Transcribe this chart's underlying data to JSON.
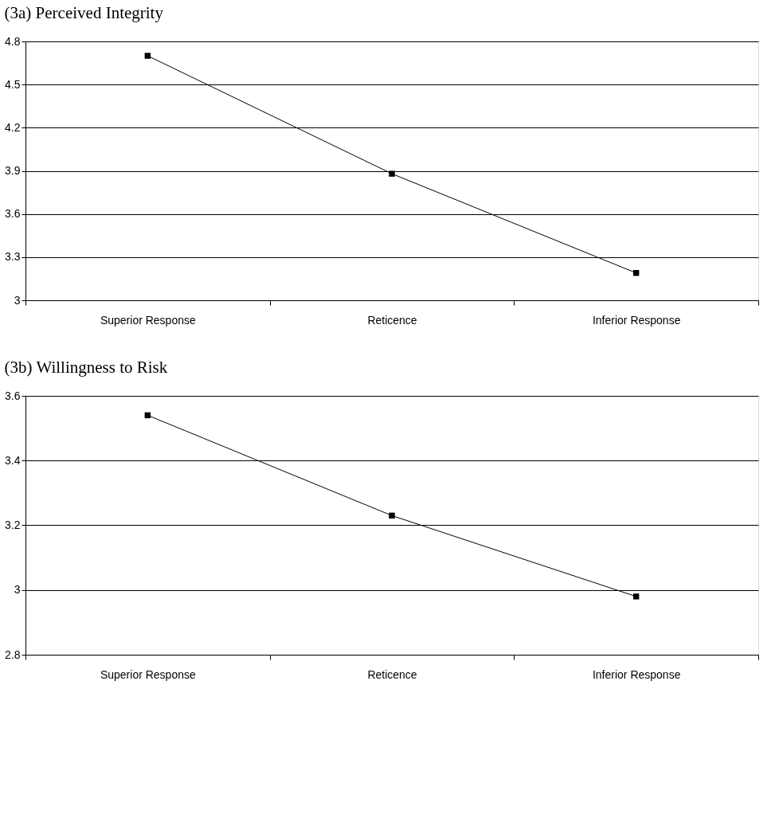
{
  "chart_data": [
    {
      "type": "line",
      "title": "(3a) Perceived Integrity",
      "categories": [
        "Superior Response",
        "Reticence",
        "Inferior Response"
      ],
      "values": [
        4.7,
        3.88,
        3.19
      ],
      "color": "#000000",
      "ylim": [
        3,
        4.8
      ],
      "yticks": [
        3,
        3.3,
        3.6,
        3.9,
        4.2,
        4.5,
        4.8
      ],
      "grid": "y",
      "marker": "square",
      "line_style": "solid"
    },
    {
      "type": "line",
      "title": "(3b) Willingness to Risk",
      "categories": [
        "Superior Response",
        "Reticence",
        "Inferior Response"
      ],
      "values": [
        3.54,
        3.23,
        2.98
      ],
      "color": "#000000",
      "ylim": [
        2.8,
        3.6
      ],
      "yticks": [
        2.8,
        3,
        3.2,
        3.4,
        3.6
      ],
      "grid": "y",
      "marker": "square",
      "line_style": "solid"
    }
  ]
}
